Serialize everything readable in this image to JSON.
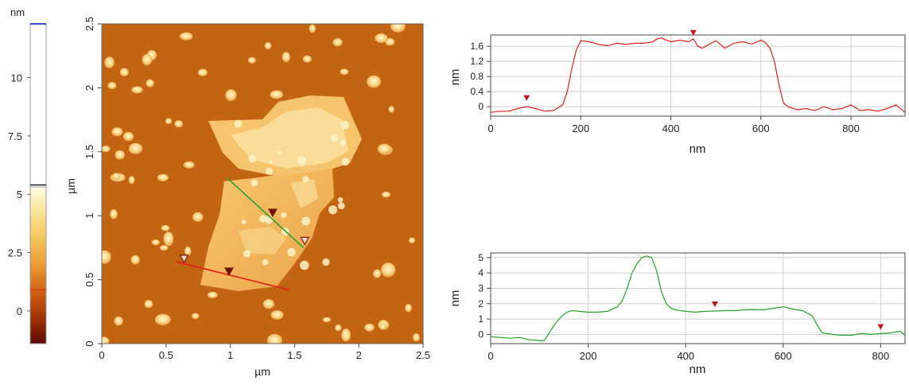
{
  "colorbar": {
    "unit": "nm",
    "ticks": [
      "0",
      "2.5",
      "5",
      "7.5",
      "10"
    ],
    "tick_values": [
      0,
      2.5,
      5,
      7.5,
      10
    ],
    "range": [
      -1.4,
      12.3
    ],
    "gradient_top_value": 5.4,
    "marker_values": [
      5.4,
      0.9
    ],
    "marker_colors": [
      "#000000",
      "#d23c10"
    ],
    "top_marker_color": "#3a4fd0"
  },
  "afm_image": {
    "xlabel": "µm",
    "ylabel": "µm",
    "xticks": [
      "0",
      "0.5",
      "1",
      "1.5",
      "2",
      "2.5"
    ],
    "yticks": [
      "0",
      "0.5",
      "1",
      "1.5",
      "2",
      "2.5"
    ],
    "range": [
      0,
      2.5
    ],
    "profile_lines": [
      {
        "name": "red-profile-line",
        "color": "#e0201a",
        "from": [
          0.58,
          0.64
        ],
        "to": [
          1.46,
          0.42
        ]
      },
      {
        "name": "green-profile-line",
        "color": "#2aa02a",
        "from": [
          0.97,
          1.3
        ],
        "to": [
          1.57,
          0.75
        ]
      }
    ],
    "cursors": [
      {
        "name": "cursor-marker-open-red-line",
        "at": [
          0.64,
          0.66
        ],
        "style": "open"
      },
      {
        "name": "cursor-marker-filled-red-line",
        "at": [
          0.99,
          0.56
        ],
        "style": "filled"
      },
      {
        "name": "cursor-marker-filled-green-line",
        "at": [
          1.33,
          1.02
        ],
        "style": "filled"
      },
      {
        "name": "cursor-marker-open-green-line",
        "at": [
          1.58,
          0.8
        ],
        "style": "open"
      }
    ]
  },
  "chart_data": [
    {
      "type": "line",
      "xlabel": "nm",
      "ylabel": "nm",
      "xlim": [
        0,
        920
      ],
      "ylim": [
        -0.25,
        1.9
      ],
      "xticks": [
        0,
        200,
        400,
        600,
        800
      ],
      "yticks": [
        0,
        0.4,
        0.8,
        1.2,
        1.6
      ],
      "ytick_labels": [
        "0",
        "0.4",
        "0.8",
        "1.2",
        "1.6"
      ],
      "grid": true,
      "series": [
        {
          "color": "#e0201a",
          "x": [
            0,
            20,
            40,
            60,
            80,
            100,
            120,
            140,
            160,
            170,
            180,
            190,
            200,
            220,
            240,
            260,
            280,
            300,
            320,
            340,
            360,
            370,
            380,
            390,
            400,
            420,
            440,
            450,
            460,
            470,
            480,
            500,
            520,
            540,
            560,
            580,
            600,
            610,
            620,
            630,
            640,
            650,
            660,
            680,
            700,
            720,
            740,
            760,
            780,
            800,
            820,
            840,
            860,
            880,
            900,
            920
          ],
          "y": [
            -0.15,
            -0.12,
            -0.12,
            -0.05,
            0.0,
            -0.05,
            -0.12,
            -0.1,
            0.05,
            0.4,
            1.0,
            1.5,
            1.75,
            1.72,
            1.65,
            1.62,
            1.68,
            1.65,
            1.68,
            1.68,
            1.72,
            1.8,
            1.82,
            1.76,
            1.72,
            1.76,
            1.72,
            1.8,
            1.6,
            1.55,
            1.62,
            1.75,
            1.55,
            1.68,
            1.72,
            1.66,
            1.76,
            1.7,
            1.55,
            1.2,
            0.6,
            0.1,
            0.0,
            -0.08,
            -0.05,
            -0.1,
            0.0,
            -0.08,
            -0.05,
            0.05,
            -0.1,
            -0.08,
            -0.12,
            -0.05,
            0.05,
            -0.15
          ]
        }
      ],
      "cursors": [
        {
          "x": 80,
          "y": 0.05
        },
        {
          "x": 450,
          "y": 1.78
        }
      ]
    },
    {
      "type": "line",
      "xlabel": "nm",
      "ylabel": "nm",
      "xlim": [
        0,
        850
      ],
      "ylim": [
        -0.6,
        5.3
      ],
      "xticks": [
        0,
        200,
        400,
        600,
        800
      ],
      "yticks": [
        0,
        1,
        2,
        3,
        4,
        5
      ],
      "ytick_labels": [
        "0",
        "1",
        "2",
        "3",
        "4",
        "5"
      ],
      "grid": true,
      "series": [
        {
          "color": "#2aa02a",
          "x": [
            0,
            20,
            40,
            60,
            80,
            100,
            110,
            120,
            130,
            140,
            150,
            160,
            170,
            180,
            200,
            220,
            240,
            260,
            270,
            280,
            290,
            300,
            310,
            320,
            330,
            340,
            350,
            360,
            370,
            380,
            390,
            400,
            420,
            440,
            460,
            480,
            500,
            520,
            540,
            560,
            580,
            600,
            620,
            640,
            660,
            670,
            680,
            700,
            720,
            740,
            760,
            780,
            800,
            820,
            840,
            850
          ],
          "y": [
            -0.15,
            -0.2,
            -0.25,
            -0.2,
            -0.35,
            -0.4,
            -0.4,
            0.1,
            0.6,
            1.0,
            1.3,
            1.5,
            1.55,
            1.5,
            1.45,
            1.45,
            1.5,
            1.8,
            2.2,
            3.0,
            4.0,
            4.6,
            5.0,
            5.1,
            5.0,
            4.2,
            2.8,
            2.0,
            1.7,
            1.6,
            1.55,
            1.5,
            1.45,
            1.5,
            1.52,
            1.55,
            1.55,
            1.6,
            1.62,
            1.6,
            1.7,
            1.8,
            1.65,
            1.55,
            1.2,
            0.6,
            0.1,
            0.0,
            -0.05,
            -0.05,
            0.05,
            0.0,
            0.05,
            0.1,
            0.2,
            -0.05
          ]
        }
      ],
      "cursors": [
        {
          "x": 460,
          "y": 1.52
        },
        {
          "x": 800,
          "y": 0.05
        }
      ]
    }
  ]
}
